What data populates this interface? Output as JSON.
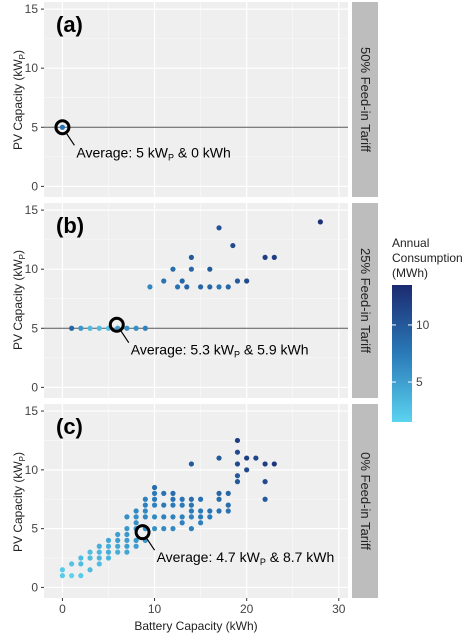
{
  "chart_data": {
    "type": "scatter",
    "xlabel": "Battery Capacity (kWh)",
    "ylabel_main": "PV Capacity (kW",
    "ylabel_sub": "P",
    "ylabel_end": ")",
    "xlim": [
      -2,
      31
    ],
    "ylim": [
      -0.9,
      15.6
    ],
    "xticks": [
      0,
      10,
      20,
      30
    ],
    "yticks": [
      0,
      5,
      10,
      15
    ],
    "colorbar": {
      "title": [
        "Annual",
        "Consumption",
        "(MWh)"
      ],
      "ticks": [
        5,
        10
      ],
      "range": [
        1.5,
        13.5
      ],
      "colors": [
        "#5bd3ef",
        "#2a7ab8",
        "#1c2a70"
      ]
    },
    "panels": [
      {
        "tag": "(a)",
        "strip": "50% Feed-in Tariff",
        "hline": 5,
        "average": {
          "x": 0,
          "y": 5,
          "text_pre": "Average: 5 kW",
          "text_sub": "P",
          "text_post": " & 0 kWh"
        },
        "points": [
          [
            0,
            5,
            8
          ]
        ]
      },
      {
        "tag": "(b)",
        "strip": "25% Feed-in Tariff",
        "hline": 5,
        "average": {
          "x": 5.9,
          "y": 5.3,
          "text_pre": "Average: 5.3 kW",
          "text_sub": "P",
          "text_post": " & 5.9 kWh"
        },
        "points": [
          [
            1,
            5,
            9
          ],
          [
            2,
            5,
            5.5
          ],
          [
            3,
            5,
            3
          ],
          [
            4,
            5,
            3
          ],
          [
            5,
            5,
            2.5
          ],
          [
            6,
            5,
            5
          ],
          [
            7,
            5,
            6
          ],
          [
            8,
            5,
            6
          ],
          [
            9,
            5,
            7
          ],
          [
            9.5,
            8.5,
            6.5
          ],
          [
            11,
            9,
            8
          ],
          [
            12,
            10,
            8.5
          ],
          [
            12.5,
            8.5,
            8
          ],
          [
            13,
            9,
            9
          ],
          [
            13.5,
            8.5,
            9
          ],
          [
            14,
            10,
            9
          ],
          [
            14,
            11,
            10
          ],
          [
            15,
            8.5,
            9
          ],
          [
            16,
            8.5,
            9
          ],
          [
            16,
            10,
            10
          ],
          [
            17,
            8.5,
            8
          ],
          [
            18,
            8.5,
            9
          ],
          [
            19,
            9,
            10
          ],
          [
            20,
            9,
            11
          ],
          [
            22,
            11,
            12
          ],
          [
            23,
            11,
            12
          ],
          [
            17,
            13.5,
            10.5
          ],
          [
            18.5,
            12,
            11
          ],
          [
            28,
            14,
            13
          ]
        ]
      },
      {
        "tag": "(c)",
        "strip": "0% Feed-in Tariff",
        "hline": null,
        "average": {
          "x": 8.7,
          "y": 4.7,
          "text_pre": "Average: 4.7 kW",
          "text_sub": "P",
          "text_post": " & 8.7 kWh"
        },
        "points": [
          [
            0,
            1.5,
            2
          ],
          [
            0,
            1,
            2
          ],
          [
            1,
            1,
            1.5
          ],
          [
            2,
            1,
            2
          ],
          [
            1,
            2,
            2.5
          ],
          [
            2,
            2,
            3
          ],
          [
            2,
            2.5,
            3
          ],
          [
            3,
            2.5,
            3
          ],
          [
            3,
            3,
            3
          ],
          [
            3,
            1.5,
            3
          ],
          [
            4,
            2,
            3
          ],
          [
            4,
            2.5,
            3.5
          ],
          [
            4,
            3,
            3.5
          ],
          [
            4,
            3.5,
            4
          ],
          [
            5,
            2.5,
            3.5
          ],
          [
            5,
            3,
            4
          ],
          [
            5,
            3.5,
            4
          ],
          [
            5,
            4,
            4.5
          ],
          [
            6,
            3,
            4
          ],
          [
            6,
            3.5,
            4.5
          ],
          [
            6,
            4,
            5
          ],
          [
            6,
            4.5,
            5
          ],
          [
            7,
            3,
            4.5
          ],
          [
            7,
            3.5,
            5
          ],
          [
            7,
            4,
            5
          ],
          [
            7,
            4.5,
            5.5
          ],
          [
            7,
            5,
            5.5
          ],
          [
            7,
            6,
            6
          ],
          [
            8,
            3.5,
            5
          ],
          [
            8,
            4,
            5.5
          ],
          [
            8,
            5,
            6
          ],
          [
            8,
            5.5,
            6
          ],
          [
            8,
            6,
            6
          ],
          [
            8,
            6.5,
            6.5
          ],
          [
            9,
            4,
            5.5
          ],
          [
            9,
            5,
            6
          ],
          [
            9,
            6,
            6.5
          ],
          [
            9,
            6.5,
            6.5
          ],
          [
            9,
            7,
            7
          ],
          [
            9,
            7.5,
            7
          ],
          [
            10,
            5,
            6
          ],
          [
            10,
            6,
            6.5
          ],
          [
            10,
            7,
            7
          ],
          [
            10,
            7.5,
            7.5
          ],
          [
            10,
            8,
            7.5
          ],
          [
            10,
            8.5,
            8.5
          ],
          [
            11,
            5,
            6.5
          ],
          [
            11,
            6,
            7
          ],
          [
            11,
            7,
            7.5
          ],
          [
            11,
            8,
            8
          ],
          [
            12,
            5,
            6.5
          ],
          [
            12,
            6,
            7
          ],
          [
            12,
            7,
            7.5
          ],
          [
            12,
            7.5,
            8
          ],
          [
            12,
            8,
            8.5
          ],
          [
            13,
            5.5,
            7
          ],
          [
            13,
            6,
            7
          ],
          [
            13,
            7,
            7.5
          ],
          [
            13,
            7.5,
            8
          ],
          [
            14,
            5,
            7
          ],
          [
            14,
            6,
            7
          ],
          [
            14,
            6.5,
            7.5
          ],
          [
            14,
            7,
            8
          ],
          [
            14,
            7.5,
            8.5
          ],
          [
            15,
            5.5,
            7
          ],
          [
            15,
            6,
            7.5
          ],
          [
            15,
            6.5,
            7.5
          ],
          [
            15,
            7.5,
            8
          ],
          [
            16,
            6,
            7.5
          ],
          [
            16,
            6.5,
            8
          ],
          [
            17,
            6.5,
            8
          ],
          [
            17,
            7.5,
            8.5
          ],
          [
            17,
            8,
            9
          ],
          [
            18,
            6.5,
            8
          ],
          [
            18,
            7,
            8.5
          ],
          [
            18,
            8,
            9
          ],
          [
            14,
            10.5,
            10
          ],
          [
            17,
            11,
            10
          ],
          [
            19,
            9,
            10
          ],
          [
            19,
            9.5,
            10
          ],
          [
            19,
            10.5,
            11
          ],
          [
            19,
            11.5,
            11
          ],
          [
            19,
            12.5,
            12
          ],
          [
            20,
            10,
            11
          ],
          [
            20,
            11,
            12
          ],
          [
            21,
            11,
            11.5
          ],
          [
            22,
            10.5,
            12
          ],
          [
            22,
            7.5,
            10
          ],
          [
            22,
            9,
            11
          ],
          [
            23,
            10.5,
            12.5
          ]
        ]
      }
    ]
  }
}
